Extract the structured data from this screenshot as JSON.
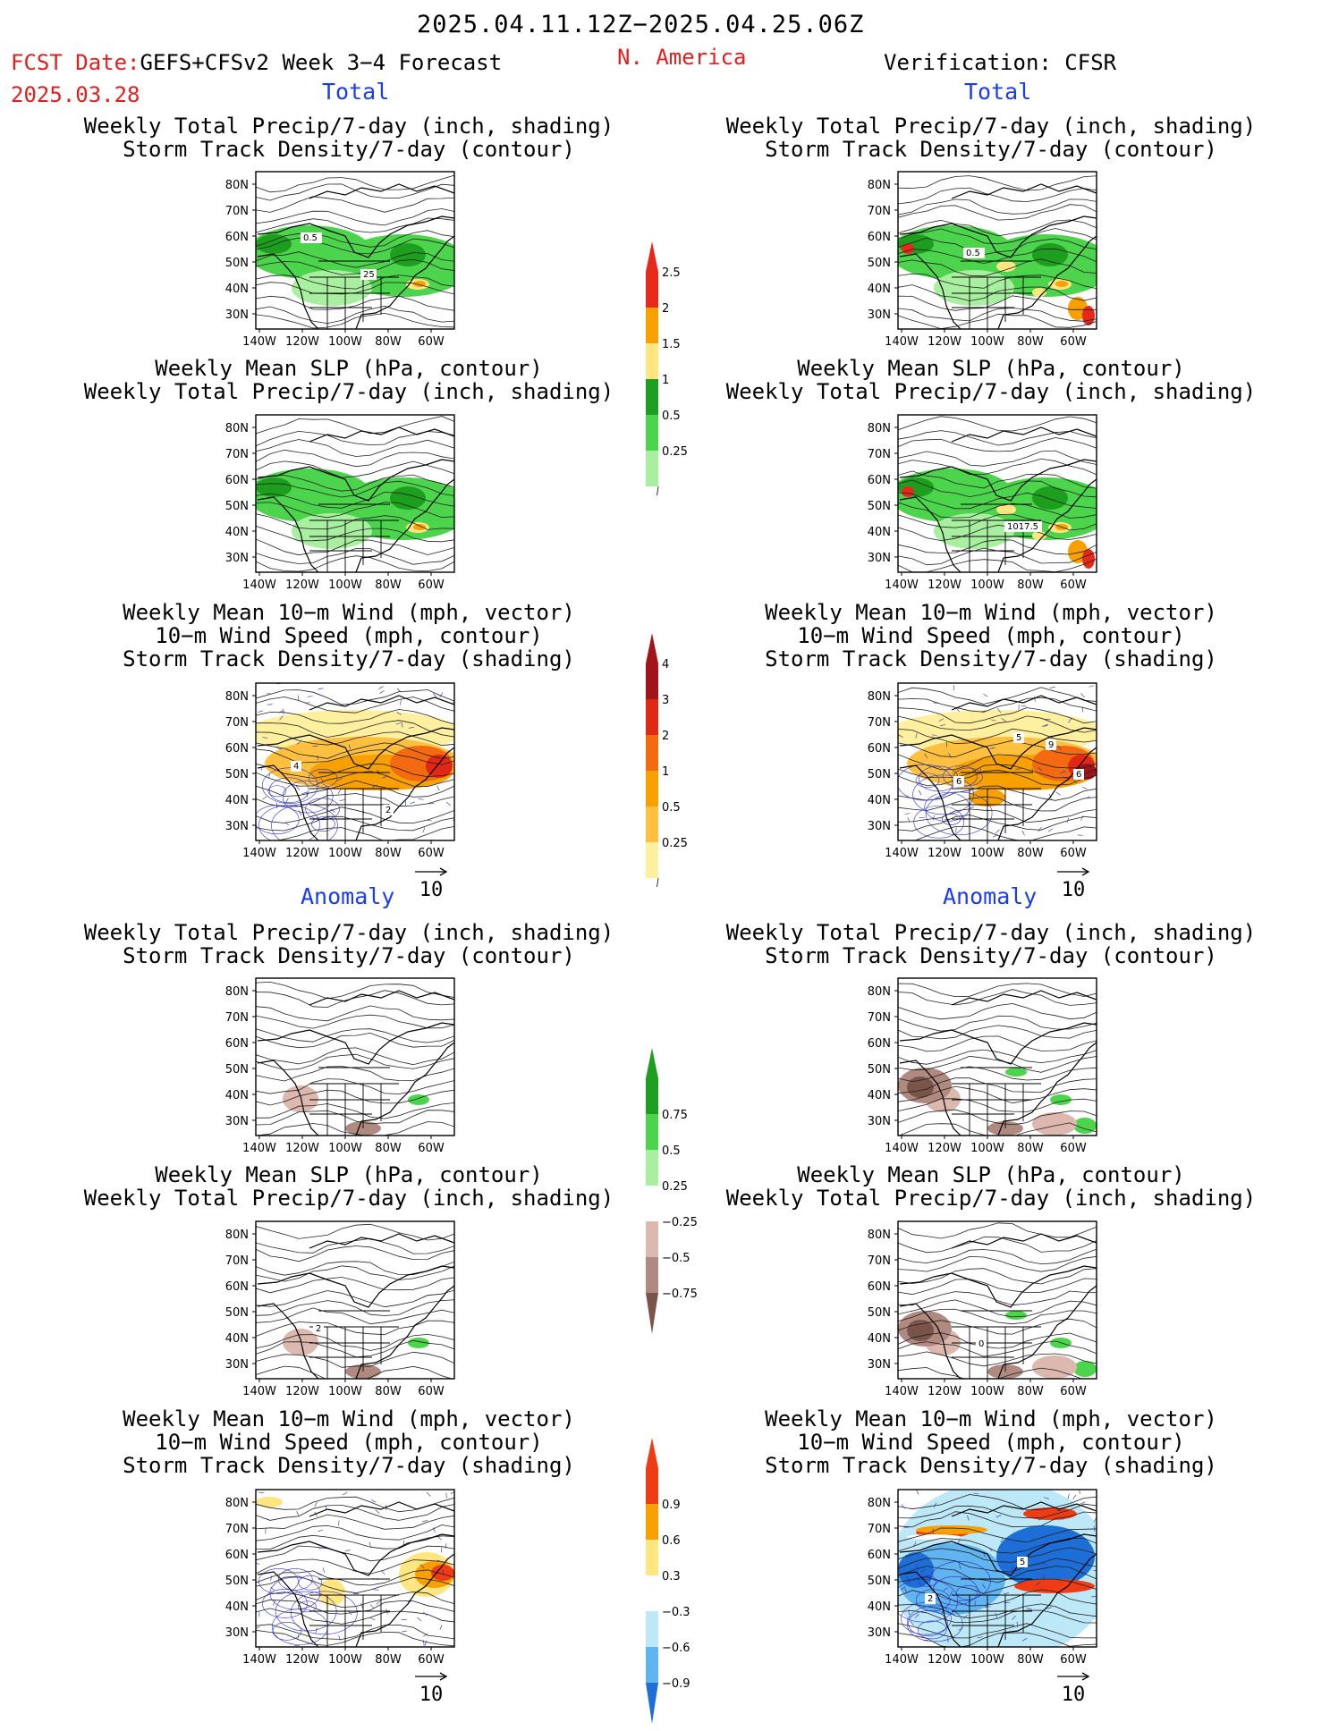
{
  "header": {
    "period": "2025.04.11.12Z−2025.04.25.06Z",
    "fcst_label": "FCST Date:",
    "fcst_model": "GEFS+CFSv2 Week 3−4 Forecast",
    "fcst_date": "2025.03.28",
    "region": "N. America",
    "verification": "Verification: CFSR"
  },
  "sections": {
    "total": "Total",
    "anomaly": "Anomaly"
  },
  "titles": {
    "precip_storm": [
      "Weekly Total Precip/7-day (inch, shading)",
      "Storm Track Density/7-day (contour)"
    ],
    "slp_precip": [
      "Weekly Mean SLP (hPa, contour)",
      "Weekly Total Precip/7-day (inch, shading)"
    ],
    "wind_storm": [
      "Weekly Mean 10−m Wind (mph, vector)",
      "10−m Wind Speed (mph, contour)",
      "Storm Track Density/7-day (shading)"
    ]
  },
  "axes": {
    "lat_ticks": [
      "80N",
      "70N",
      "60N",
      "50N",
      "40N",
      "30N"
    ],
    "lon_ticks": [
      "140W",
      "120W",
      "100W",
      "80W",
      "60W"
    ]
  },
  "vector_ref": "10",
  "contour_labels": {
    "fcst_total_precip": [
      "0.5",
      "25"
    ],
    "obs_total_precip": [
      "0.5"
    ],
    "obs_total_slp": [
      "1017.5"
    ],
    "fcst_total_wind": [
      "2",
      "4"
    ],
    "obs_total_wind": [
      "9",
      "6",
      "5",
      "6"
    ],
    "obs_anom_slp": [
      "0"
    ],
    "fcst_anom_slp": [
      "2"
    ],
    "obs_anom_wind": [
      "5",
      "2"
    ]
  },
  "colorbars": {
    "precip_total": {
      "labels": [
        "2.5",
        "2",
        "1.5",
        "1",
        "0.5",
        "0.25"
      ],
      "colors": [
        "#e8281a",
        "#f7a000",
        "#ffe680",
        "#1e9e1e",
        "#4cd44c",
        "#a8f0a0"
      ]
    },
    "storm_total": {
      "labels": [
        "4",
        "3",
        "2",
        "1",
        "0.5",
        "0.25"
      ],
      "colors": [
        "#a0141a",
        "#e02814",
        "#f46a10",
        "#f7a000",
        "#ffc040",
        "#fff0a0"
      ]
    },
    "precip_anom": {
      "labels": [
        "0.75",
        "0.5",
        "0.25",
        "−0.25",
        "−0.5",
        "−0.75"
      ],
      "colors": [
        "#1e9e1e",
        "#4cd44c",
        "#a8f0a0",
        "#ffffff",
        "#dcb8ae",
        "#b08a80",
        "#7a5448"
      ]
    },
    "storm_anom": {
      "labels": [
        "0.9",
        "0.6",
        "0.3",
        "−0.3",
        "−0.6",
        "−0.9"
      ],
      "colors": [
        "#f03c14",
        "#f7a000",
        "#ffe680",
        "#ffffff",
        "#bce8f8",
        "#60b4f0",
        "#1e6ed8"
      ]
    }
  }
}
